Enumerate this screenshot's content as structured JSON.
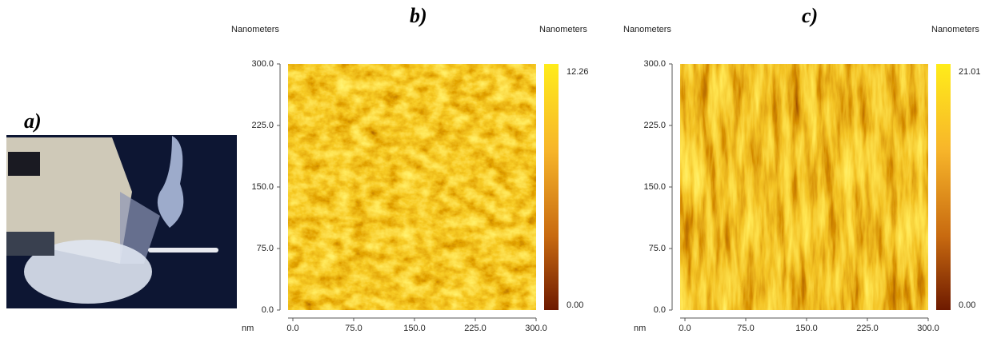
{
  "panels": [
    {
      "label": "a)"
    },
    {
      "label": "b)",
      "y_unit": "Nanometers",
      "colorbar_unit": "Nanometers",
      "x_unit": "nm",
      "yticks": [
        "300.0",
        "225.0",
        "150.0",
        "75.0",
        "0.0"
      ],
      "xticks": [
        "0.0",
        "75.0",
        "150.0",
        "225.0",
        "300.0"
      ],
      "colorbar": [
        "12.26",
        "0.00"
      ]
    },
    {
      "label": "c)",
      "y_unit": "Nanometers",
      "colorbar_unit": "Nanometers",
      "x_unit": "nm",
      "yticks": [
        "300.0",
        "225.0",
        "150.0",
        "75.0",
        "0.0"
      ],
      "xticks": [
        "0.0",
        "75.0",
        "150.0",
        "225.0",
        "300.0"
      ],
      "colorbar": [
        "21.01",
        "0.00"
      ]
    }
  ]
}
